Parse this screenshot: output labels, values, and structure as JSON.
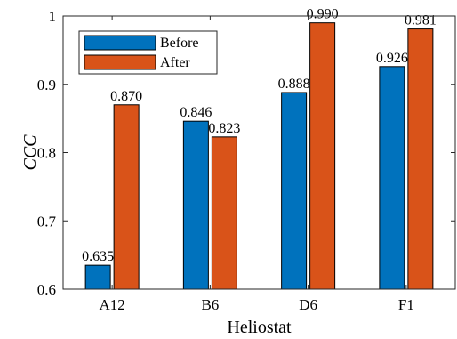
{
  "chart_data": {
    "type": "bar",
    "categories": [
      "A12",
      "B6",
      "D6",
      "F1"
    ],
    "series": [
      {
        "name": "Before",
        "values": [
          0.635,
          0.846,
          0.888,
          0.926
        ],
        "labels": [
          "0.635",
          "0.846",
          "0.888",
          "0.926"
        ],
        "color": "#0072BD"
      },
      {
        "name": "After",
        "values": [
          0.87,
          0.823,
          0.99,
          0.981
        ],
        "labels": [
          "0.870",
          "0.823",
          "0.990",
          "0.981"
        ],
        "color": "#D95319"
      }
    ],
    "xlabel": "Heliostat",
    "ylabel": "CCC",
    "ylim": [
      0.6,
      1.0
    ],
    "yticks": [
      0.6,
      0.7,
      0.8,
      0.9,
      1.0
    ],
    "ytick_labels": [
      "0.6",
      "0.7",
      "0.8",
      "0.9",
      "1"
    ],
    "grid": false,
    "legend": "top-left"
  }
}
